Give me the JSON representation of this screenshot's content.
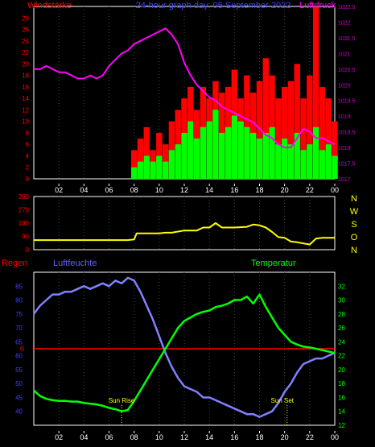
{
  "chart_data": [
    {
      "type": "line",
      "title": "24-hour graph day: 05 September 2022",
      "left_label": "Windstärke",
      "right_label": "Luftdruck",
      "x_ticks": [
        "02",
        "04",
        "06",
        "08",
        "10",
        "12",
        "14",
        "16",
        "18",
        "20",
        "22",
        "00"
      ],
      "ylim_left": [
        0,
        30
      ],
      "left_ticks": [
        "0",
        "2",
        "4",
        "6",
        "8",
        "10",
        "12",
        "14",
        "16",
        "18",
        "20",
        "22",
        "24",
        "26",
        "28"
      ],
      "ylim_right": [
        1017,
        1022.5
      ],
      "right_ticks": [
        "1017",
        "1017.5",
        "1018",
        "1018.5",
        "1019",
        "1019.5",
        "1020",
        "1020.5",
        "1021",
        "1021.5",
        "1022",
        "1022.5"
      ],
      "colors": {
        "pressure": "#ff00ff",
        "gust": "#ff0000",
        "wind": "#00ff00",
        "axes_left": "#ff0000",
        "axes_right": "#cc00cc"
      },
      "series": [
        {
          "name": "Luftdruck",
          "x": [
            0,
            0.5,
            1,
            1.5,
            2,
            2.5,
            3,
            3.5,
            4,
            4.5,
            5,
            5.5,
            6,
            6.5,
            7,
            7.5,
            8,
            8.5,
            9,
            9.5,
            10,
            10.5,
            11,
            11.5,
            12,
            12.5,
            13,
            13.5,
            14,
            14.5,
            15,
            15.5,
            16,
            16.5,
            17,
            17.5,
            18,
            18.5,
            19,
            19.5,
            20,
            20.5,
            21,
            21.5,
            22,
            22.5,
            23,
            23.5,
            24
          ],
          "values": [
            1020.5,
            1020.5,
            1020.6,
            1020.5,
            1020.4,
            1020.4,
            1020.3,
            1020.2,
            1020.2,
            1020.3,
            1020.2,
            1020.3,
            1020.6,
            1020.8,
            1021.0,
            1021.1,
            1021.3,
            1021.4,
            1021.5,
            1021.6,
            1021.7,
            1021.8,
            1021.6,
            1021.3,
            1020.7,
            1020.3,
            1020.0,
            1019.8,
            1019.6,
            1019.5,
            1019.3,
            1019.2,
            1019.1,
            1019.0,
            1018.9,
            1018.8,
            1018.6,
            1018.4,
            1018.3,
            1018.1,
            1018.0,
            1018.0,
            1018.3,
            1018.6,
            1018.5,
            1018.3,
            1018.3,
            1018.2,
            1018.1
          ]
        },
        {
          "name": "Windstärke Böen",
          "x": [
            0,
            2,
            4,
            6,
            7.5,
            8,
            8.5,
            9,
            9.5,
            10,
            10.5,
            11,
            11.5,
            12,
            12.5,
            13,
            13.5,
            14,
            14.5,
            15,
            15.5,
            16,
            16.5,
            17,
            17.5,
            18,
            18.5,
            19,
            19.5,
            20,
            20.5,
            21,
            21.5,
            22,
            22.5,
            23,
            23.5,
            24
          ],
          "values": [
            0,
            0,
            0,
            0,
            0,
            5,
            7,
            9,
            5,
            8,
            6,
            10,
            12,
            14,
            16,
            12,
            16,
            14,
            17,
            15,
            16,
            19,
            14,
            18,
            15,
            17,
            21,
            18,
            14,
            16,
            17,
            20,
            14,
            18,
            30,
            16,
            14,
            10
          ]
        },
        {
          "name": "Windstärke Mittel",
          "x": [
            0,
            2,
            4,
            6,
            7.5,
            8,
            8.5,
            9,
            9.5,
            10,
            10.5,
            11,
            11.5,
            12,
            12.5,
            13,
            13.5,
            14,
            14.5,
            15,
            15.5,
            16,
            16.5,
            17,
            17.5,
            18,
            18.5,
            19,
            19.5,
            20,
            20.5,
            21,
            21.5,
            22,
            22.5,
            23,
            23.5,
            24
          ],
          "values": [
            0,
            0,
            0,
            0,
            0,
            2,
            3,
            4,
            3,
            4,
            3,
            5,
            6,
            8,
            10,
            7,
            9,
            10,
            12,
            8,
            9,
            11,
            10,
            9,
            8,
            7,
            8,
            9,
            6,
            7,
            6,
            8,
            5,
            6,
            9,
            5,
            6,
            4
          ]
        }
      ]
    },
    {
      "type": "line",
      "x_ticks": [
        "02",
        "04",
        "06",
        "08",
        "10",
        "12",
        "14",
        "16",
        "18",
        "20",
        "22",
        "00"
      ],
      "ylim": [
        0,
        360
      ],
      "left_ticks": [
        "0",
        "90",
        "180",
        "270",
        "360"
      ],
      "right_ticks": [
        "N",
        "W",
        "S",
        "O",
        "N"
      ],
      "colors": {
        "direction": "#ffff00",
        "axes_left": "#ff0000",
        "axes_right": "#ffff00"
      },
      "series": [
        {
          "name": "Windrichtung",
          "x": [
            0,
            1,
            2,
            3,
            4,
            5,
            6,
            7,
            7.5,
            8,
            8.2,
            9,
            10,
            10.5,
            11,
            12,
            13,
            13.5,
            14,
            14.5,
            15,
            16,
            17,
            17.5,
            18,
            18.5,
            19,
            19.5,
            20,
            20.5,
            21,
            22,
            22.5,
            23,
            24
          ],
          "values": [
            65,
            65,
            65,
            65,
            65,
            65,
            65,
            65,
            65,
            70,
            110,
            110,
            110,
            115,
            115,
            130,
            130,
            150,
            150,
            180,
            150,
            150,
            155,
            170,
            165,
            150,
            120,
            85,
            80,
            55,
            50,
            35,
            75,
            80,
            80
          ]
        }
      ]
    },
    {
      "type": "line",
      "left_title": "Regen",
      "mid_title": "Luftfeuchte",
      "right_title": "Temperatur",
      "x_ticks": [
        "02",
        "04",
        "06",
        "08",
        "10",
        "12",
        "14",
        "16",
        "18",
        "20",
        "22",
        "00"
      ],
      "ylim_left": [
        35,
        90
      ],
      "left_ticks": [
        "40",
        "45",
        "50",
        "55",
        "60",
        "65",
        "70",
        "75",
        "80",
        "85"
      ],
      "ylim_right": [
        12,
        34
      ],
      "right_ticks": [
        "12",
        "14",
        "16",
        "18",
        "20",
        "22",
        "24",
        "26",
        "28",
        "30",
        "32"
      ],
      "rain_marker": "0",
      "annotations": [
        "Sun Rise",
        "Sun Set"
      ],
      "colors": {
        "humidity": "#8080ff",
        "temperature": "#00ff00",
        "rain": "#ff0000",
        "axes_left": "#4040ff",
        "axes_right": "#00ff00"
      },
      "series": [
        {
          "name": "Luftfeuchte",
          "x": [
            0,
            0.5,
            1,
            1.5,
            2,
            2.5,
            3,
            3.5,
            4,
            4.5,
            5,
            5.5,
            6,
            6.5,
            7,
            7.5,
            8,
            8.5,
            9,
            9.5,
            10,
            10.5,
            11,
            11.5,
            12,
            12.5,
            13,
            13.5,
            14,
            14.5,
            15,
            15.5,
            16,
            16.5,
            17,
            17.5,
            18,
            18.5,
            19,
            19.5,
            20,
            20.5,
            21,
            21.5,
            22,
            22.5,
            23,
            23.5,
            24
          ],
          "values": [
            75,
            78,
            80,
            82,
            82,
            83,
            83,
            84,
            85,
            84,
            85,
            86,
            85,
            87,
            86,
            88,
            87,
            83,
            78,
            73,
            67,
            61,
            56,
            52,
            49,
            48,
            47,
            45,
            45,
            44,
            43,
            42,
            41,
            40,
            39,
            39,
            38,
            39,
            40,
            43,
            47,
            50,
            54,
            57,
            58,
            59,
            59,
            60,
            61
          ]
        },
        {
          "name": "Temperatur",
          "x": [
            0,
            0.5,
            1,
            1.5,
            2,
            2.5,
            3,
            3.5,
            4,
            4.5,
            5,
            5.5,
            6,
            6.5,
            7,
            7.5,
            8,
            8.5,
            9,
            9.5,
            10,
            10.5,
            11,
            11.5,
            12,
            12.5,
            13,
            13.5,
            14,
            14.5,
            15,
            15.5,
            16,
            16.5,
            17,
            17.5,
            18,
            18.5,
            19,
            19.5,
            20,
            20.5,
            21,
            21.5,
            22,
            22.5,
            23,
            23.5,
            24
          ],
          "values": [
            17,
            16.2,
            15.8,
            15.6,
            15.5,
            15.5,
            15.4,
            15.4,
            15.2,
            15.1,
            15.0,
            14.8,
            14.5,
            14.3,
            14.0,
            14.2,
            15.5,
            17,
            18.5,
            20,
            21.5,
            23,
            24.5,
            26,
            27,
            27.5,
            28,
            28.3,
            28.5,
            29,
            29.2,
            29.5,
            30,
            30,
            30.5,
            29.5,
            30.8,
            29,
            27.5,
            26,
            25,
            24,
            23.6,
            23.3,
            23.2,
            23.0,
            22.8,
            22.6,
            22.4
          ]
        }
      ]
    }
  ]
}
